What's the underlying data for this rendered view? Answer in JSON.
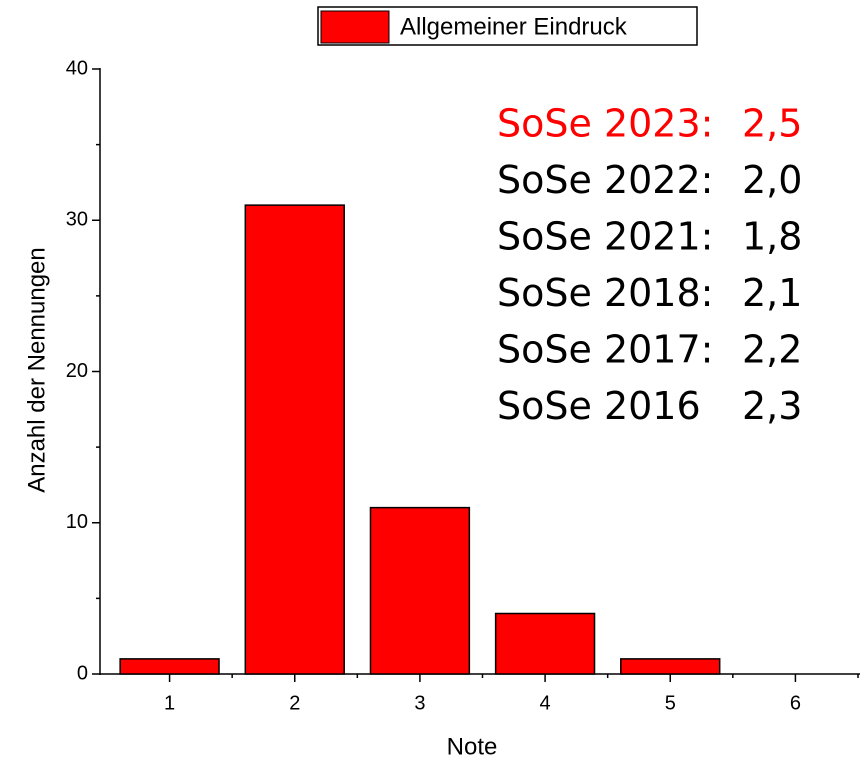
{
  "chart_data": {
    "type": "bar",
    "legend": "Allgemeiner Eindruck",
    "xlabel": "Note",
    "ylabel": "Anzahl der Nennungen",
    "categories": [
      "1",
      "2",
      "3",
      "4",
      "5",
      "6"
    ],
    "values": [
      1,
      31,
      11,
      4,
      1,
      0
    ],
    "color": "#ff0000",
    "ylim": [
      0,
      40
    ],
    "yticks": [
      0,
      10,
      20,
      30,
      40
    ],
    "annotations": [
      {
        "label": "SoSe 2023:",
        "value": "2,5",
        "color": "#ff0000"
      },
      {
        "label": "SoSe 2022:",
        "value": "2,0",
        "color": "#000000"
      },
      {
        "label": "SoSe 2021:",
        "value": "1,8",
        "color": "#000000"
      },
      {
        "label": "SoSe 2018:",
        "value": "2,1",
        "color": "#000000"
      },
      {
        "label": "SoSe 2017:",
        "value": "2,2",
        "color": "#000000"
      },
      {
        "label": "SoSe 2016",
        "value": "2,3",
        "color": "#000000"
      }
    ]
  }
}
